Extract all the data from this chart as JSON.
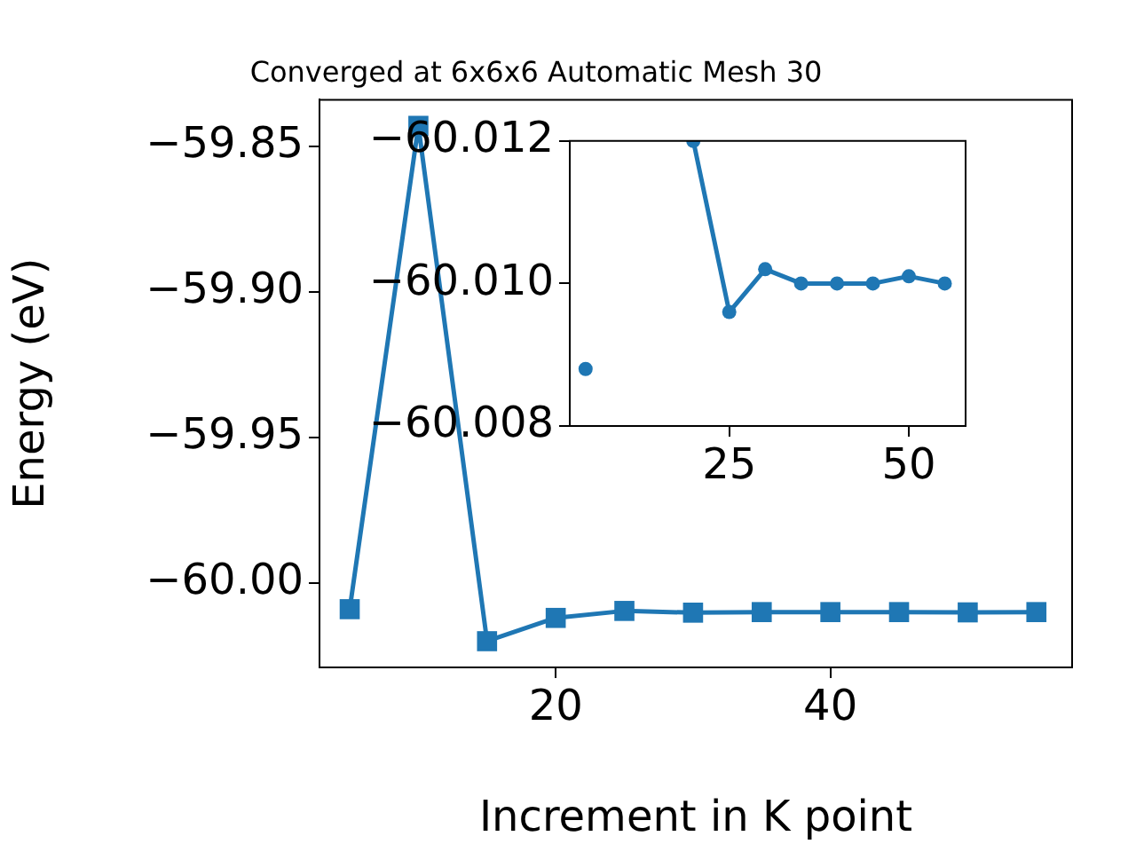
{
  "chart_data": [
    {
      "type": "line",
      "title": "Converged at 6x6x6 Automatic Mesh 30",
      "xlabel": "Increment in K point",
      "ylabel": "Energy (eV)",
      "x": [
        5,
        10,
        15,
        20,
        25,
        30,
        35,
        40,
        45,
        50,
        55
      ],
      "series": [
        {
          "color": "#1f77b4",
          "values": [
            -60.009,
            -59.843,
            -60.02,
            -60.012,
            -60.0096,
            -60.0102,
            -60.01,
            -60.01,
            -60.01,
            -60.0101,
            -60.01
          ]
        }
      ],
      "xlim": [
        2.8,
        57.6
      ],
      "xticks": [
        20,
        40
      ],
      "ylim": [
        -60.029,
        -59.834
      ],
      "yticks": [
        {
          "value": -60.0,
          "label": "−60.00"
        },
        {
          "value": -59.95,
          "label": "−59.95"
        },
        {
          "value": -59.9,
          "label": "−59.90"
        },
        {
          "value": -59.85,
          "label": "−59.85"
        }
      ],
      "marker": "square",
      "line_style": "solid",
      "grid": false,
      "legend": false
    },
    {
      "type": "line",
      "x": [
        5,
        10,
        15,
        20,
        25,
        30,
        35,
        40,
        45,
        50,
        55
      ],
      "series": [
        {
          "color": "#1f77b4",
          "values": [
            -60.0088,
            null,
            null,
            -60.012,
            -60.0096,
            -60.0102,
            -60.01,
            -60.01,
            -60.01,
            -60.0101,
            -60.01
          ]
        }
      ],
      "xlim": [
        2.8,
        57.9
      ],
      "xticks": [
        25,
        50
      ],
      "ylim": [
        -60.008,
        -60.012
      ],
      "yticks": [
        {
          "value": -60.012,
          "label": "−60.012"
        },
        {
          "value": -60.01,
          "label": "−60.010"
        },
        {
          "value": -60.008,
          "label": "−60.008"
        }
      ],
      "marker": "circle",
      "line_style": "solid",
      "grid": false,
      "legend": false
    }
  ]
}
